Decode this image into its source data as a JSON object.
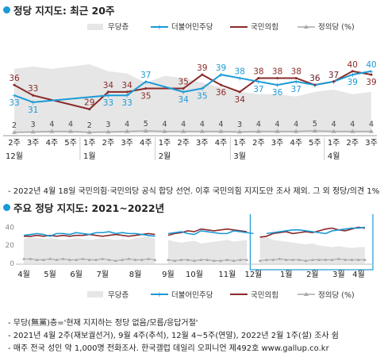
{
  "section1_title": "정당 지지도: 최근 20주",
  "section2_title": "주요 정당 지지도: 2021~2022년",
  "note1": "- 2022년 4월 18일 국민의힘·국민의당 공식 합당 선언. 이후 국민의힘 지지도만 조사",
  "note1b": "제외. 그 외 정당/의견 1%",
  "footnotes": [
    "- 무당(無黨)층='현재 지지하는 정당 없음/모름/응답거절'",
    "- 2021년 4월 2주(재보궐선거), 9월 4주(추석), 12월 4~5주(연말), 2022년 2월 1주(설) 조사 쉼",
    "- 매주 전국 성인 약 1,000명 전화조사. 한국갤럽 데일리 오피니언 제492호 www.gallup.co.kr"
  ],
  "colors": {
    "dem": "#1a9ad6",
    "ppp": "#8b2a2a",
    "justice": "#a9a9a9",
    "nonpartisan": "#e6e6e6",
    "accent": "#1a9ad6"
  },
  "chart_data": [
    {
      "type": "line",
      "title": "정당 지지도: 최근 20주",
      "x": [
        "12월 2주",
        "3주",
        "4주",
        "5주",
        "1월 1주",
        "2주",
        "3주",
        "4주",
        "2월 1주",
        "2주",
        "3주",
        "4주",
        "3월 1주",
        "2주",
        "3주",
        "4주",
        "5주",
        "4월 1주",
        "2주",
        "3주"
      ],
      "x_top": [
        "2주",
        "3주",
        "4주",
        "5주",
        "1주",
        "2주",
        "3주",
        "4주",
        "1주",
        "2주",
        "3주",
        "4주",
        "1주",
        "2주",
        "3주",
        "4주",
        "5주",
        "1주",
        "2주",
        "3주"
      ],
      "x_bottom": [
        {
          "label": "12월",
          "at": 0
        },
        {
          "label": "1월",
          "at": 4
        },
        {
          "label": "2월",
          "at": 8
        },
        {
          "label": "3월",
          "at": 12
        },
        {
          "label": "4월",
          "at": 17
        }
      ],
      "legend": [
        "무당층",
        "더불어민주당",
        "국민의힘",
        "정의당 (%)"
      ],
      "series": [
        {
          "name": "더불어민주당",
          "values": [
            33,
            31,
            null,
            null,
            null,
            33,
            33,
            37,
            null,
            34,
            35,
            39,
            38,
            37,
            36,
            37,
            36,
            37,
            39,
            40
          ]
        },
        {
          "name": "국민의힘",
          "values": [
            36,
            33,
            null,
            null,
            29,
            34,
            34,
            35,
            null,
            35,
            39,
            36,
            34,
            38,
            38,
            38,
            36,
            37,
            40,
            39
          ]
        },
        {
          "name": "정의당",
          "values": [
            2,
            3,
            4,
            4,
            2,
            3,
            4,
            5,
            4,
            4,
            4,
            4,
            3,
            4,
            4,
            4,
            5,
            4,
            4,
            4
          ]
        },
        {
          "name": "무당층",
          "values": [
            28,
            29,
            28,
            29,
            30,
            27,
            26,
            22,
            25,
            24,
            22,
            20,
            18,
            17,
            17,
            16,
            18,
            19,
            17,
            18
          ]
        }
      ],
      "labels_dem": [
        "33",
        "31",
        "",
        "",
        "",
        "33",
        "33",
        "37",
        "",
        "34",
        "35",
        "39",
        "38",
        "37",
        "36",
        "37",
        "36",
        "37",
        "39",
        "40"
      ],
      "labels_ppp": [
        "36",
        "33",
        "",
        "",
        "29",
        "34",
        "34",
        "35",
        "",
        "35",
        "39",
        "36",
        "34",
        "38",
        "38",
        "38",
        "36",
        "37",
        "40",
        "39"
      ],
      "labels_justice": [
        "2",
        "3",
        "4",
        "4",
        "2",
        "3",
        "4",
        "5",
        "4",
        "4",
        "4",
        "4",
        "3",
        "4",
        "4",
        "4",
        "5",
        "4",
        "4",
        "4"
      ]
    },
    {
      "type": "line",
      "title": "주요 정당 지지도: 2021~2022년",
      "yticks": [
        40,
        20,
        0
      ],
      "ylim": [
        0,
        50
      ],
      "months": [
        "4월",
        "5월",
        "6월",
        "7월",
        "8월",
        "9월",
        "10월",
        "11월",
        "12월",
        "1월",
        "2월",
        "3월",
        "4월"
      ],
      "legend": [
        "무당층",
        "더불어민주당",
        "국민의힘",
        "정의당 (%)"
      ],
      "series": [
        {
          "name": "더불어민주당",
          "values": [
            31,
            32,
            33,
            32,
            30,
            33,
            33,
            32,
            34,
            33,
            32,
            34,
            34,
            35,
            33,
            34,
            33,
            33,
            32,
            31,
            30,
            null,
            33,
            34,
            35,
            33,
            32,
            36,
            35,
            34,
            33,
            33,
            36,
            35,
            34,
            33,
            null,
            33,
            34,
            35,
            36,
            37,
            37,
            36,
            35,
            34,
            33,
            36,
            37,
            38,
            39,
            39,
            40
          ]
        },
        {
          "name": "국민의힘",
          "values": [
            30,
            30,
            31,
            30,
            31,
            30,
            31,
            30,
            31,
            31,
            32,
            31,
            30,
            31,
            32,
            31,
            30,
            31,
            32,
            33,
            32,
            null,
            31,
            33,
            34,
            36,
            35,
            38,
            37,
            36,
            37,
            38,
            37,
            36,
            35,
            null,
            29,
            30,
            33,
            34,
            35,
            33,
            34,
            35,
            34,
            36,
            38,
            39,
            37,
            36,
            38,
            40,
            39
          ]
        },
        {
          "name": "정의당",
          "values": [
            5,
            5,
            4,
            4,
            5,
            4,
            5,
            4,
            4,
            5,
            4,
            4,
            5,
            4,
            3,
            4,
            5,
            4,
            4,
            5,
            4,
            null,
            4,
            3,
            4,
            4,
            3,
            4,
            4,
            3,
            3,
            4,
            3,
            4,
            4,
            null,
            3,
            4,
            4,
            5,
            4,
            4,
            4,
            3,
            4,
            4,
            4,
            4,
            5,
            4,
            4,
            4,
            4
          ]
        },
        {
          "name": "무당층",
          "values": [
            27,
            29,
            28,
            27,
            28,
            27,
            26,
            27,
            28,
            27,
            26,
            27,
            28,
            27,
            26,
            27,
            26,
            28,
            29,
            30,
            27,
            null,
            26,
            24,
            23,
            24,
            25,
            22,
            23,
            24,
            25,
            26,
            24,
            25,
            26,
            null,
            30,
            29,
            26,
            25,
            24,
            23,
            22,
            21,
            22,
            20,
            19,
            18,
            19,
            18,
            17,
            18,
            18
          ]
        }
      ]
    }
  ]
}
